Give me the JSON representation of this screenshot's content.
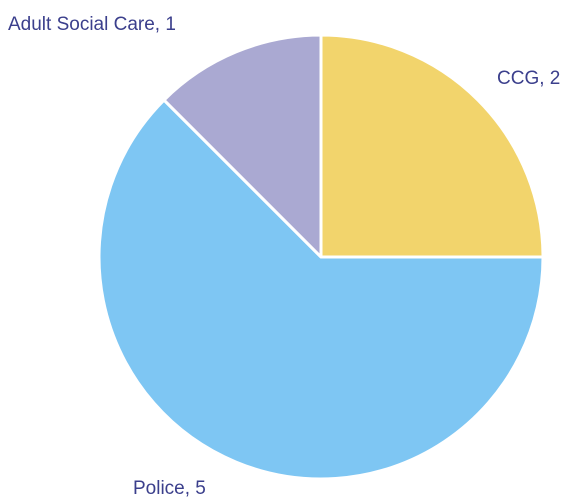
{
  "chart_data": {
    "type": "pie",
    "slices": [
      {
        "label": "CCG, 2",
        "category": "CCG",
        "value": 2,
        "color": "#f2d46c"
      },
      {
        "label": "Police, 5",
        "category": "Police",
        "value": 5,
        "color": "#7ec6f3"
      },
      {
        "label": "Adult Social Care, 1",
        "category": "Adult Social Care",
        "value": 1,
        "color": "#aaa9d2"
      }
    ],
    "start_angle": "12 o'clock",
    "direction": "clockwise",
    "legend": "none"
  }
}
